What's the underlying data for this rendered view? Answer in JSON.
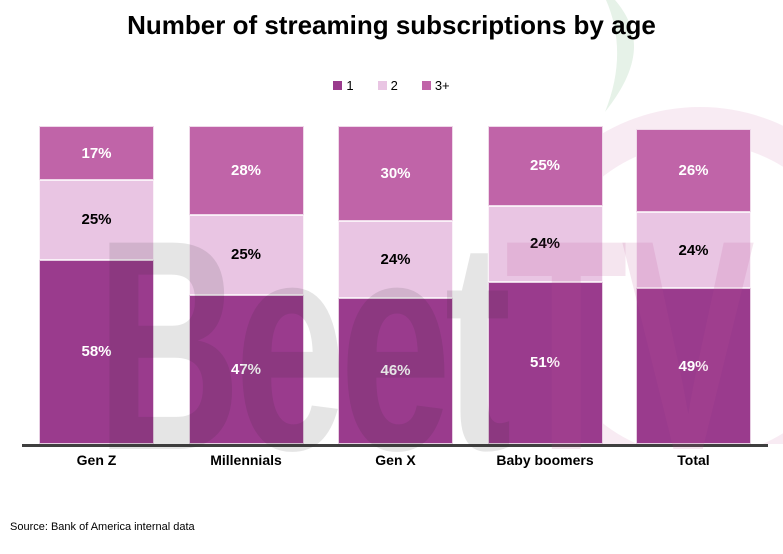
{
  "title": "Number of streaming subscriptions by age",
  "source": "Source: Bank of America internal data",
  "watermark": {
    "gray": "Beet",
    "pink": "TV"
  },
  "colors": {
    "axis": "#3f3f3f",
    "leaf": "#e6f2e8",
    "ring": "rgba(206,112,172,0.14)"
  },
  "chart_data": {
    "type": "bar",
    "stacked": true,
    "percent_stacked": true,
    "title": "Number of streaming subscriptions by age",
    "categories": [
      "Gen Z",
      "Millennials",
      "Gen X",
      "Baby boomers",
      "Total"
    ],
    "series": [
      {
        "name": "1",
        "color": "#9a3b8d",
        "label_color": "#ffffff",
        "values": [
          58,
          47,
          46,
          51,
          49
        ]
      },
      {
        "name": "2",
        "color": "#e9c5e3",
        "label_color": "#000000",
        "values": [
          25,
          25,
          24,
          24,
          24
        ]
      },
      {
        "name": "3+",
        "color": "#c064a8",
        "label_color": "#ffffff",
        "values": [
          17,
          28,
          30,
          25,
          26
        ]
      }
    ],
    "value_format": "percent",
    "ylim": [
      0,
      100
    ],
    "grid": false,
    "legend_position": "top",
    "xlabel": "",
    "ylabel": ""
  }
}
